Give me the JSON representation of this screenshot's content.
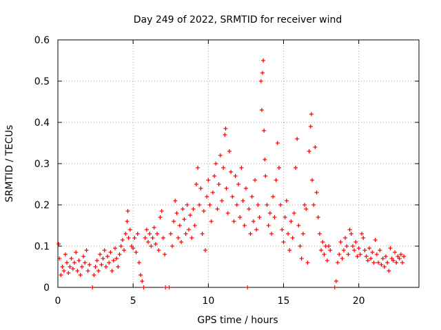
{
  "chart_data": {
    "type": "scatter",
    "title": "Day 249 of 2022, SRMTID for receiver wind",
    "xlabel": "GPS time / hours",
    "ylabel": "SRMTID / TECUs",
    "xlim": [
      0,
      24
    ],
    "ylim": [
      0,
      0.6
    ],
    "xticks": [
      0,
      5,
      10,
      15,
      20
    ],
    "xtick_labels": [
      "0",
      "5",
      "10",
      "15",
      "20"
    ],
    "yticks": [
      0,
      0.1,
      0.2,
      0.3,
      0.4,
      0.5,
      0.6
    ],
    "ytick_labels": [
      "0",
      "0.1",
      "0.2",
      "0.3",
      "0.4",
      "0.5",
      "0.6"
    ],
    "grid": true,
    "marker": "+",
    "color": "#ff0000",
    "series": [
      {
        "name": "SRMTID",
        "points": [
          [
            0.05,
            0.105
          ],
          [
            0.1,
            0.07
          ],
          [
            0.2,
            0.03
          ],
          [
            0.3,
            0.05
          ],
          [
            0.4,
            0.04
          ],
          [
            0.5,
            0.08
          ],
          [
            0.6,
            0.06
          ],
          [
            0.7,
            0.035
          ],
          [
            0.8,
            0.05
          ],
          [
            0.9,
            0.07
          ],
          [
            1.0,
            0.045
          ],
          [
            1.1,
            0.06
          ],
          [
            1.2,
            0.085
          ],
          [
            1.3,
            0.04
          ],
          [
            1.4,
            0.065
          ],
          [
            1.5,
            0.03
          ],
          [
            1.6,
            0.05
          ],
          [
            1.7,
            0.075
          ],
          [
            1.8,
            0.06
          ],
          [
            1.9,
            0.09
          ],
          [
            2.0,
            0.04
          ],
          [
            2.1,
            0.055
          ],
          [
            2.3,
            0.0
          ],
          [
            2.4,
            0.03
          ],
          [
            2.5,
            0.05
          ],
          [
            2.6,
            0.065
          ],
          [
            2.7,
            0.04
          ],
          [
            2.8,
            0.08
          ],
          [
            2.9,
            0.055
          ],
          [
            3.0,
            0.07
          ],
          [
            3.1,
            0.09
          ],
          [
            3.2,
            0.05
          ],
          [
            3.3,
            0.075
          ],
          [
            3.4,
            0.06
          ],
          [
            3.5,
            0.085
          ],
          [
            3.6,
            0.04
          ],
          [
            3.7,
            0.065
          ],
          [
            3.8,
            0.095
          ],
          [
            3.9,
            0.07
          ],
          [
            4.0,
            0.05
          ],
          [
            4.1,
            0.08
          ],
          [
            4.2,
            0.1
          ],
          [
            4.3,
            0.115
          ],
          [
            4.4,
            0.09
          ],
          [
            4.5,
            0.13
          ],
          [
            4.6,
            0.16
          ],
          [
            4.65,
            0.185
          ],
          [
            4.7,
            0.12
          ],
          [
            4.8,
            0.14
          ],
          [
            4.9,
            0.1
          ],
          [
            5.0,
            0.095
          ],
          [
            5.1,
            0.12
          ],
          [
            5.2,
            0.085
          ],
          [
            5.3,
            0.13
          ],
          [
            5.4,
            0.06
          ],
          [
            5.5,
            0.03
          ],
          [
            5.6,
            0.015
          ],
          [
            5.7,
            0.0
          ],
          [
            5.8,
            0.12
          ],
          [
            5.9,
            0.14
          ],
          [
            6.0,
            0.11
          ],
          [
            6.1,
            0.13
          ],
          [
            6.2,
            0.1
          ],
          [
            6.3,
            0.12
          ],
          [
            6.4,
            0.145
          ],
          [
            6.5,
            0.105
          ],
          [
            6.6,
            0.13
          ],
          [
            6.7,
            0.09
          ],
          [
            6.8,
            0.17
          ],
          [
            6.9,
            0.185
          ],
          [
            7.0,
            0.12
          ],
          [
            7.1,
            0.08
          ],
          [
            7.15,
            0.0
          ],
          [
            7.4,
            0.0
          ],
          [
            7.5,
            0.13
          ],
          [
            7.6,
            0.1
          ],
          [
            7.7,
            0.16
          ],
          [
            7.8,
            0.21
          ],
          [
            7.9,
            0.18
          ],
          [
            8.0,
            0.12
          ],
          [
            8.1,
            0.15
          ],
          [
            8.2,
            0.11
          ],
          [
            8.3,
            0.19
          ],
          [
            8.4,
            0.165
          ],
          [
            8.5,
            0.13
          ],
          [
            8.6,
            0.2
          ],
          [
            8.7,
            0.14
          ],
          [
            8.8,
            0.175
          ],
          [
            8.9,
            0.12
          ],
          [
            9.0,
            0.19
          ],
          [
            9.1,
            0.15
          ],
          [
            9.2,
            0.25
          ],
          [
            9.3,
            0.29
          ],
          [
            9.4,
            0.2
          ],
          [
            9.5,
            0.24
          ],
          [
            9.6,
            0.13
          ],
          [
            9.7,
            0.185
          ],
          [
            9.8,
            0.09
          ],
          [
            9.9,
            0.22
          ],
          [
            10.0,
            0.26
          ],
          [
            10.1,
            0.2
          ],
          [
            10.2,
            0.16
          ],
          [
            10.3,
            0.23
          ],
          [
            10.4,
            0.27
          ],
          [
            10.5,
            0.3
          ],
          [
            10.6,
            0.19
          ],
          [
            10.7,
            0.25
          ],
          [
            10.8,
            0.32
          ],
          [
            10.9,
            0.21
          ],
          [
            11.0,
            0.29
          ],
          [
            11.1,
            0.37
          ],
          [
            11.15,
            0.385
          ],
          [
            11.2,
            0.24
          ],
          [
            11.3,
            0.18
          ],
          [
            11.4,
            0.33
          ],
          [
            11.5,
            0.28
          ],
          [
            11.6,
            0.22
          ],
          [
            11.7,
            0.16
          ],
          [
            11.8,
            0.27
          ],
          [
            11.9,
            0.2
          ],
          [
            12.0,
            0.25
          ],
          [
            12.1,
            0.17
          ],
          [
            12.2,
            0.29
          ],
          [
            12.3,
            0.21
          ],
          [
            12.4,
            0.15
          ],
          [
            12.5,
            0.24
          ],
          [
            12.6,
            0.0
          ],
          [
            12.7,
            0.19
          ],
          [
            12.8,
            0.13
          ],
          [
            12.9,
            0.22
          ],
          [
            13.0,
            0.16
          ],
          [
            13.1,
            0.26
          ],
          [
            13.2,
            0.14
          ],
          [
            13.3,
            0.2
          ],
          [
            13.4,
            0.17
          ],
          [
            13.5,
            0.5
          ],
          [
            13.55,
            0.43
          ],
          [
            13.6,
            0.52
          ],
          [
            13.65,
            0.55
          ],
          [
            13.7,
            0.38
          ],
          [
            13.75,
            0.31
          ],
          [
            13.8,
            0.27
          ],
          [
            13.9,
            0.2
          ],
          [
            14.0,
            0.15
          ],
          [
            14.1,
            0.18
          ],
          [
            14.2,
            0.13
          ],
          [
            14.3,
            0.22
          ],
          [
            14.4,
            0.17
          ],
          [
            14.5,
            0.26
          ],
          [
            14.6,
            0.35
          ],
          [
            14.7,
            0.29
          ],
          [
            14.8,
            0.2
          ],
          [
            14.9,
            0.14
          ],
          [
            15.0,
            0.11
          ],
          [
            15.1,
            0.17
          ],
          [
            15.2,
            0.21
          ],
          [
            15.3,
            0.13
          ],
          [
            15.4,
            0.09
          ],
          [
            15.5,
            0.16
          ],
          [
            15.6,
            0.12
          ],
          [
            15.7,
            0.18
          ],
          [
            15.8,
            0.29
          ],
          [
            15.9,
            0.36
          ],
          [
            16.0,
            0.15
          ],
          [
            16.1,
            0.1
          ],
          [
            16.2,
            0.07
          ],
          [
            16.3,
            0.13
          ],
          [
            16.4,
            0.2
          ],
          [
            16.5,
            0.19
          ],
          [
            16.6,
            0.06
          ],
          [
            16.7,
            0.33
          ],
          [
            16.8,
            0.39
          ],
          [
            16.85,
            0.42
          ],
          [
            16.9,
            0.26
          ],
          [
            17.0,
            0.2
          ],
          [
            17.1,
            0.34
          ],
          [
            17.2,
            0.23
          ],
          [
            17.3,
            0.17
          ],
          [
            17.4,
            0.13
          ],
          [
            17.5,
            0.09
          ],
          [
            17.6,
            0.11
          ],
          [
            17.7,
            0.08
          ],
          [
            17.8,
            0.1
          ],
          [
            17.9,
            0.065
          ],
          [
            18.0,
            0.1
          ],
          [
            18.1,
            0.09
          ],
          [
            18.4,
            0.0
          ],
          [
            18.5,
            0.015
          ],
          [
            18.6,
            0.06
          ],
          [
            18.7,
            0.08
          ],
          [
            18.8,
            0.11
          ],
          [
            18.9,
            0.07
          ],
          [
            19.0,
            0.09
          ],
          [
            19.1,
            0.12
          ],
          [
            19.2,
            0.1
          ],
          [
            19.3,
            0.08
          ],
          [
            19.4,
            0.14
          ],
          [
            19.5,
            0.13
          ],
          [
            19.6,
            0.1
          ],
          [
            19.7,
            0.09
          ],
          [
            19.8,
            0.11
          ],
          [
            19.9,
            0.075
          ],
          [
            20.0,
            0.095
          ],
          [
            20.1,
            0.08
          ],
          [
            20.2,
            0.13
          ],
          [
            20.3,
            0.12
          ],
          [
            20.4,
            0.09
          ],
          [
            20.5,
            0.075
          ],
          [
            20.6,
            0.065
          ],
          [
            20.7,
            0.095
          ],
          [
            20.8,
            0.07
          ],
          [
            20.9,
            0.085
          ],
          [
            21.0,
            0.06
          ],
          [
            21.1,
            0.115
          ],
          [
            21.2,
            0.08
          ],
          [
            21.3,
            0.06
          ],
          [
            21.4,
            0.09
          ],
          [
            21.5,
            0.055
          ],
          [
            21.6,
            0.07
          ],
          [
            21.7,
            0.05
          ],
          [
            21.8,
            0.075
          ],
          [
            21.9,
            0.06
          ],
          [
            22.0,
            0.04
          ],
          [
            22.1,
            0.095
          ],
          [
            22.2,
            0.07
          ],
          [
            22.3,
            0.065
          ],
          [
            22.4,
            0.085
          ],
          [
            22.5,
            0.06
          ],
          [
            22.6,
            0.075
          ],
          [
            22.7,
            0.07
          ],
          [
            22.8,
            0.08
          ],
          [
            22.9,
            0.06
          ],
          [
            23.0,
            0.075
          ]
        ]
      }
    ]
  }
}
